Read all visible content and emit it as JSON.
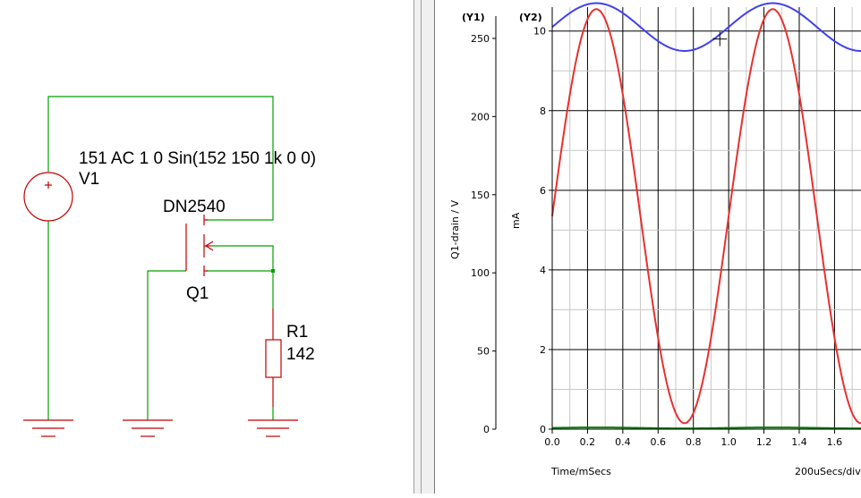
{
  "schematic": {
    "source": {
      "name": "V1",
      "spec": "151 AC 1 0 Sin(152 150 1k 0 0)",
      "polarity": "+"
    },
    "transistor": {
      "name": "Q1",
      "model": "DN2540"
    },
    "resistor": {
      "name": "R1",
      "value": "142"
    },
    "colors": {
      "wire": "#00a000",
      "component": "#c00000",
      "node": "#00a000"
    }
  },
  "chart_data": {
    "type": "line",
    "xlabel": "Time/mSecs",
    "x_div_label": "200uSecs/div",
    "xlim": [
      0,
      1.75
    ],
    "x_ticks": [
      0.0,
      0.2,
      0.4,
      0.6,
      0.8,
      1.0,
      1.2,
      1.4,
      1.6
    ],
    "x_tick_labels": [
      "0.0",
      "0.2",
      "0.4",
      "0.6",
      "0.8",
      "1.0",
      "1.2",
      "1.4",
      "1.6"
    ],
    "y1": {
      "header": "(Y1)",
      "label": "Q1-drain / V",
      "lim": [
        0,
        270
      ],
      "ticks": [
        0,
        50,
        100,
        150,
        200,
        250
      ],
      "tick_labels": [
        "0",
        "50",
        "100",
        "150",
        "200",
        "250"
      ]
    },
    "y2": {
      "header": "(Y2)",
      "label": "mA",
      "lim": [
        0,
        10.6
      ],
      "ticks": [
        0,
        2,
        4,
        6,
        8,
        10
      ],
      "tick_labels": [
        "0",
        "2",
        "4",
        "6",
        "8",
        "10"
      ]
    },
    "grid": true,
    "series": [
      {
        "axis": "y2",
        "color": "#4040f0",
        "mean": 10.1,
        "amplitude": 0.6,
        "freq_per_ms": 1.0,
        "phase_ms": 0.0
      },
      {
        "axis": "y2",
        "color": "#e83030",
        "mean": 5.35,
        "amplitude": 5.2,
        "freq_per_ms": 1.0,
        "phase_ms": 0.0
      },
      {
        "axis": "y1",
        "color": "#008000",
        "mean": 0.8,
        "amplitude": 0.3,
        "freq_per_ms": 1.0,
        "phase_ms": 0.0
      }
    ],
    "cursor": {
      "x": 0.95,
      "y2": 9.8
    }
  }
}
